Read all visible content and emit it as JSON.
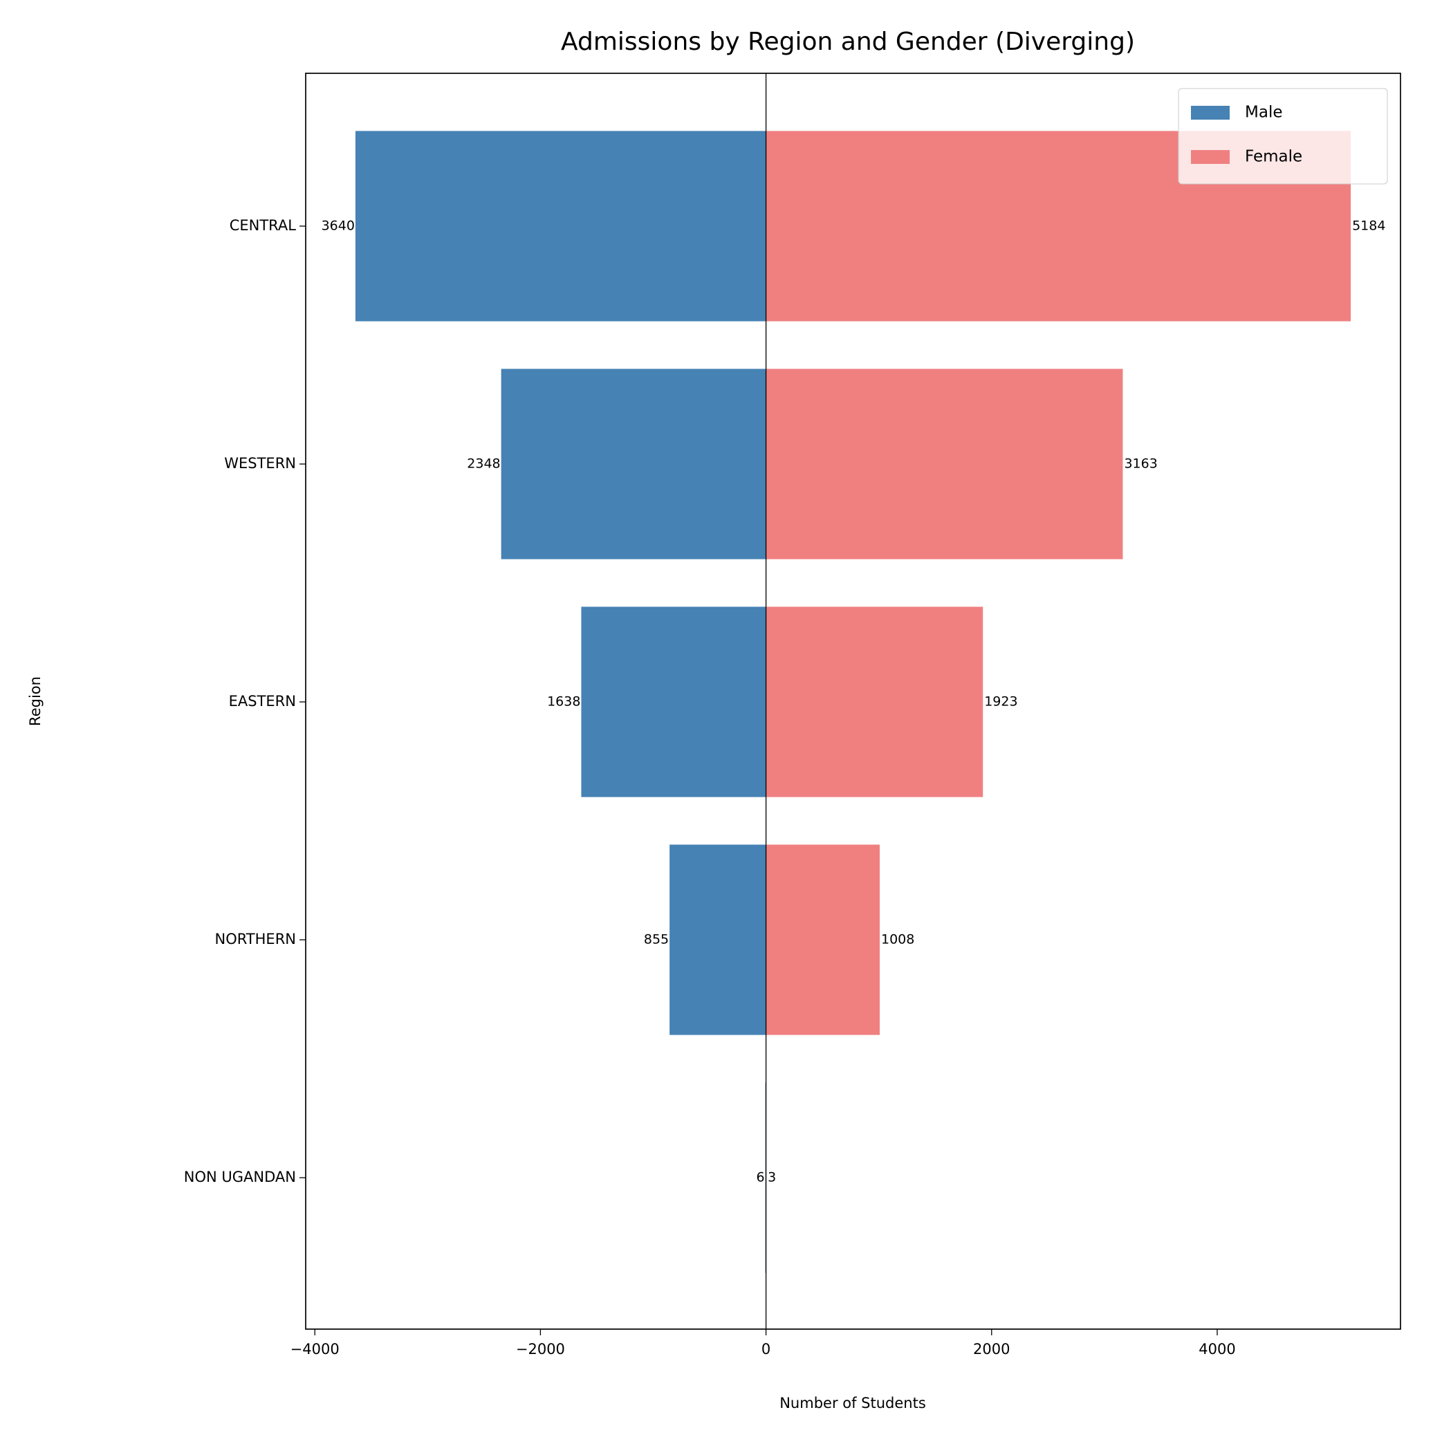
{
  "chart_data": {
    "type": "diverging-bar",
    "title": "Admissions by Region and Gender (Diverging)",
    "x_label": "Number of Students",
    "y_label": "Region",
    "categories": [
      "CENTRAL",
      "WESTERN",
      "EASTERN",
      "NORTHERN",
      "NON UGANDAN"
    ],
    "series": [
      {
        "name": "Male",
        "color": "#4682b4",
        "values": [
          -3640,
          -2348,
          -1638,
          -855,
          -6
        ],
        "value_labels": [
          "3640",
          "2348",
          "1638",
          "855",
          "6"
        ]
      },
      {
        "name": "Female",
        "color": "#f08080",
        "values": [
          5184,
          3163,
          1923,
          1008,
          3
        ]
      }
    ],
    "xlim": [
      -4081,
      5625
    ],
    "xticks": [
      {
        "value": -4000,
        "label": "−4000"
      },
      {
        "value": -2000,
        "label": "−2000"
      },
      0,
      2000,
      4000
    ],
    "legend": "upper right"
  }
}
